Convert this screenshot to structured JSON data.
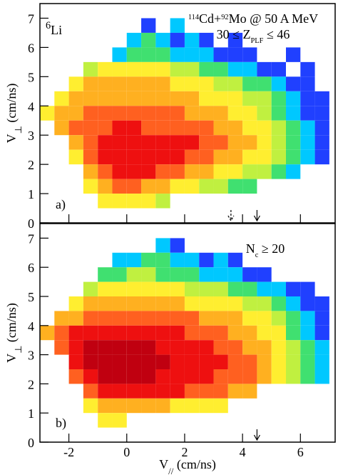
{
  "chart_data": [
    {
      "type": "heatmap",
      "annotations": [
        {
          "parts": [
            {
              "text": "6",
              "shift": "sup"
            },
            {
              "text": "Li"
            }
          ]
        },
        {
          "parts": [
            {
              "text": "114",
              "shift": "sup"
            },
            {
              "text": "Cd+"
            },
            {
              "text": "92",
              "shift": "sup"
            },
            {
              "text": "Mo @ 50 A MeV"
            }
          ]
        },
        {
          "parts": [
            {
              "text": "30 ≤ Z"
            },
            {
              "text": "PLF",
              "shift": "sub"
            },
            {
              "text": " ≤ 46"
            }
          ]
        },
        {
          "parts": [
            {
              "text": "a)"
            }
          ]
        }
      ],
      "ylabel": {
        "parts": [
          {
            "text": "V"
          },
          {
            "text": "⊥",
            "shift": "sub"
          },
          {
            "text": " (cm/ns)"
          }
        ]
      },
      "xlim": [
        -3,
        7.2
      ],
      "ylim": [
        0,
        7.5
      ],
      "xticks": [
        -2,
        0,
        2,
        4,
        6
      ],
      "show_xtick_labels": false,
      "yticks": [
        0,
        1,
        2,
        3,
        4,
        5,
        6,
        7
      ],
      "markers": [
        {
          "x": 3.6,
          "style": "dashed"
        },
        {
          "x": 4.5,
          "style": "solid"
        }
      ],
      "colorscale": [
        "#8a2be2",
        "#2040ff",
        "#00c8ff",
        "#40e070",
        "#c0f040",
        "#ffee30",
        "#ffb020",
        "#ff6020",
        "#ee1010",
        "#c00010"
      ],
      "x": [
        -2.75,
        -2.25,
        -1.75,
        -1.25,
        -0.75,
        -0.25,
        0.25,
        0.75,
        1.25,
        1.75,
        2.25,
        2.75,
        3.25,
        3.75,
        4.25,
        4.75,
        5.25,
        5.75,
        6.25,
        6.75
      ],
      "y": [
        6.75,
        6.25,
        5.75,
        5.25,
        4.75,
        4.25,
        3.75,
        3.25,
        2.75,
        2.25,
        1.75,
        1.25,
        0.75
      ],
      "values": [
        [
          null,
          null,
          null,
          null,
          null,
          null,
          null,
          2,
          null,
          3,
          null,
          null,
          null,
          null,
          null,
          null,
          null,
          null,
          null,
          null
        ],
        [
          null,
          null,
          null,
          null,
          null,
          null,
          3,
          4,
          3,
          2,
          3,
          2,
          null,
          2,
          null,
          null,
          null,
          null,
          null,
          null
        ],
        [
          null,
          null,
          null,
          null,
          null,
          3,
          4,
          4,
          4,
          3,
          3,
          3,
          2,
          2,
          2,
          null,
          null,
          2,
          null,
          null
        ],
        [
          null,
          null,
          null,
          5,
          6,
          6,
          6,
          6,
          6,
          5,
          5,
          4,
          4,
          3,
          3,
          2,
          2,
          null,
          2,
          null
        ],
        [
          null,
          null,
          6,
          7,
          7,
          7,
          7,
          7,
          7,
          6,
          6,
          6,
          5,
          5,
          4,
          4,
          3,
          2,
          2,
          null
        ],
        [
          null,
          6,
          7,
          7,
          7,
          7,
          7,
          7,
          7,
          7,
          7,
          6,
          6,
          6,
          5,
          5,
          4,
          3,
          2,
          2
        ],
        [
          6,
          7,
          7,
          8,
          8,
          8,
          8,
          8,
          8,
          8,
          7,
          7,
          7,
          6,
          6,
          5,
          4,
          3,
          2,
          2
        ],
        [
          null,
          7,
          8,
          8,
          8,
          9,
          9,
          8,
          8,
          8,
          8,
          8,
          7,
          7,
          6,
          6,
          5,
          4,
          3,
          2
        ],
        [
          null,
          null,
          7,
          8,
          9,
          9,
          9,
          9,
          9,
          9,
          9,
          8,
          8,
          7,
          7,
          6,
          5,
          4,
          3,
          2
        ],
        [
          null,
          null,
          6,
          8,
          9,
          9,
          9,
          9,
          9,
          9,
          8,
          8,
          7,
          7,
          6,
          6,
          5,
          4,
          3,
          2
        ],
        [
          null,
          null,
          null,
          7,
          8,
          9,
          9,
          9,
          8,
          8,
          7,
          7,
          6,
          6,
          5,
          5,
          4,
          3,
          null,
          null
        ],
        [
          null,
          null,
          null,
          6,
          7,
          8,
          8,
          7,
          7,
          6,
          6,
          5,
          5,
          4,
          4,
          null,
          null,
          null,
          null,
          null
        ],
        [
          null,
          null,
          null,
          null,
          6,
          6,
          6,
          6,
          5,
          null,
          null,
          null,
          null,
          null,
          null,
          null,
          null,
          null,
          null,
          null
        ]
      ]
    },
    {
      "type": "heatmap",
      "annotations": [
        {
          "parts": [
            {
              "text": "N"
            },
            {
              "text": "c",
              "shift": "sub"
            },
            {
              "text": " ≥ 20"
            }
          ]
        },
        {
          "parts": [
            {
              "text": "b)"
            }
          ]
        }
      ],
      "ylabel": {
        "parts": [
          {
            "text": "V"
          },
          {
            "text": "⊥",
            "shift": "sub"
          },
          {
            "text": " (cm/ns)"
          }
        ]
      },
      "xlabel": {
        "parts": [
          {
            "text": "V"
          },
          {
            "text": "//",
            "shift": "sub"
          },
          {
            "text": " (cm/ns)"
          }
        ]
      },
      "xlim": [
        -3,
        7.2
      ],
      "ylim": [
        0,
        7.5
      ],
      "xticks": [
        -2,
        0,
        2,
        4,
        6
      ],
      "show_xtick_labels": true,
      "yticks": [
        0,
        1,
        2,
        3,
        4,
        5,
        6,
        7
      ],
      "markers": [
        {
          "x": 4.5,
          "style": "solid"
        }
      ],
      "colorscale": [
        "#8a2be2",
        "#2040ff",
        "#00c8ff",
        "#40e070",
        "#c0f040",
        "#ffee30",
        "#ffb020",
        "#ff6020",
        "#ee1010",
        "#c00010"
      ],
      "x": [
        -2.75,
        -2.25,
        -1.75,
        -1.25,
        -0.75,
        -0.25,
        0.25,
        0.75,
        1.25,
        1.75,
        2.25,
        2.75,
        3.25,
        3.75,
        4.25,
        4.75,
        5.25,
        5.75,
        6.25,
        6.75
      ],
      "y": [
        6.75,
        6.25,
        5.75,
        5.25,
        4.75,
        4.25,
        3.75,
        3.25,
        2.75,
        2.25,
        1.75,
        1.25,
        0.75
      ],
      "values": [
        [
          null,
          null,
          null,
          null,
          null,
          null,
          null,
          null,
          3,
          2,
          null,
          null,
          null,
          null,
          null,
          null,
          null,
          null,
          null,
          null
        ],
        [
          null,
          null,
          null,
          null,
          null,
          3,
          3,
          4,
          4,
          3,
          3,
          2,
          3,
          2,
          null,
          null,
          null,
          null,
          null,
          null
        ],
        [
          null,
          null,
          null,
          null,
          4,
          4,
          5,
          5,
          4,
          4,
          4,
          3,
          3,
          3,
          2,
          2,
          null,
          null,
          null,
          null
        ],
        [
          null,
          null,
          null,
          5,
          6,
          6,
          6,
          6,
          6,
          6,
          5,
          5,
          5,
          4,
          4,
          3,
          3,
          2,
          2,
          null
        ],
        [
          null,
          null,
          6,
          7,
          7,
          7,
          7,
          7,
          7,
          7,
          6,
          6,
          6,
          6,
          5,
          5,
          4,
          3,
          2,
          2
        ],
        [
          null,
          7,
          7,
          8,
          8,
          8,
          8,
          8,
          8,
          8,
          8,
          7,
          7,
          7,
          6,
          6,
          5,
          4,
          3,
          2
        ],
        [
          7,
          8,
          9,
          9,
          9,
          9,
          9,
          9,
          9,
          9,
          8,
          8,
          8,
          7,
          7,
          6,
          6,
          4,
          3,
          2
        ],
        [
          null,
          8,
          9,
          10,
          10,
          10,
          10,
          10,
          9,
          9,
          9,
          9,
          8,
          8,
          7,
          7,
          6,
          5,
          4,
          3
        ],
        [
          null,
          null,
          9,
          10,
          10,
          10,
          10,
          10,
          10,
          9,
          9,
          9,
          9,
          8,
          8,
          7,
          6,
          5,
          4,
          3
        ],
        [
          null,
          null,
          8,
          9,
          10,
          10,
          10,
          10,
          9,
          9,
          9,
          9,
          8,
          8,
          8,
          7,
          6,
          5,
          4,
          3
        ],
        [
          null,
          null,
          null,
          8,
          9,
          9,
          9,
          9,
          9,
          9,
          8,
          8,
          8,
          7,
          7,
          null,
          null,
          null,
          null,
          null
        ],
        [
          null,
          null,
          null,
          6,
          7,
          7,
          7,
          7,
          7,
          6,
          6,
          6,
          6,
          null,
          null,
          null,
          null,
          null,
          null,
          null
        ],
        [
          null,
          null,
          null,
          null,
          6,
          6,
          null,
          null,
          null,
          null,
          null,
          null,
          null,
          null,
          null,
          null,
          null,
          null,
          null,
          null
        ]
      ]
    }
  ]
}
